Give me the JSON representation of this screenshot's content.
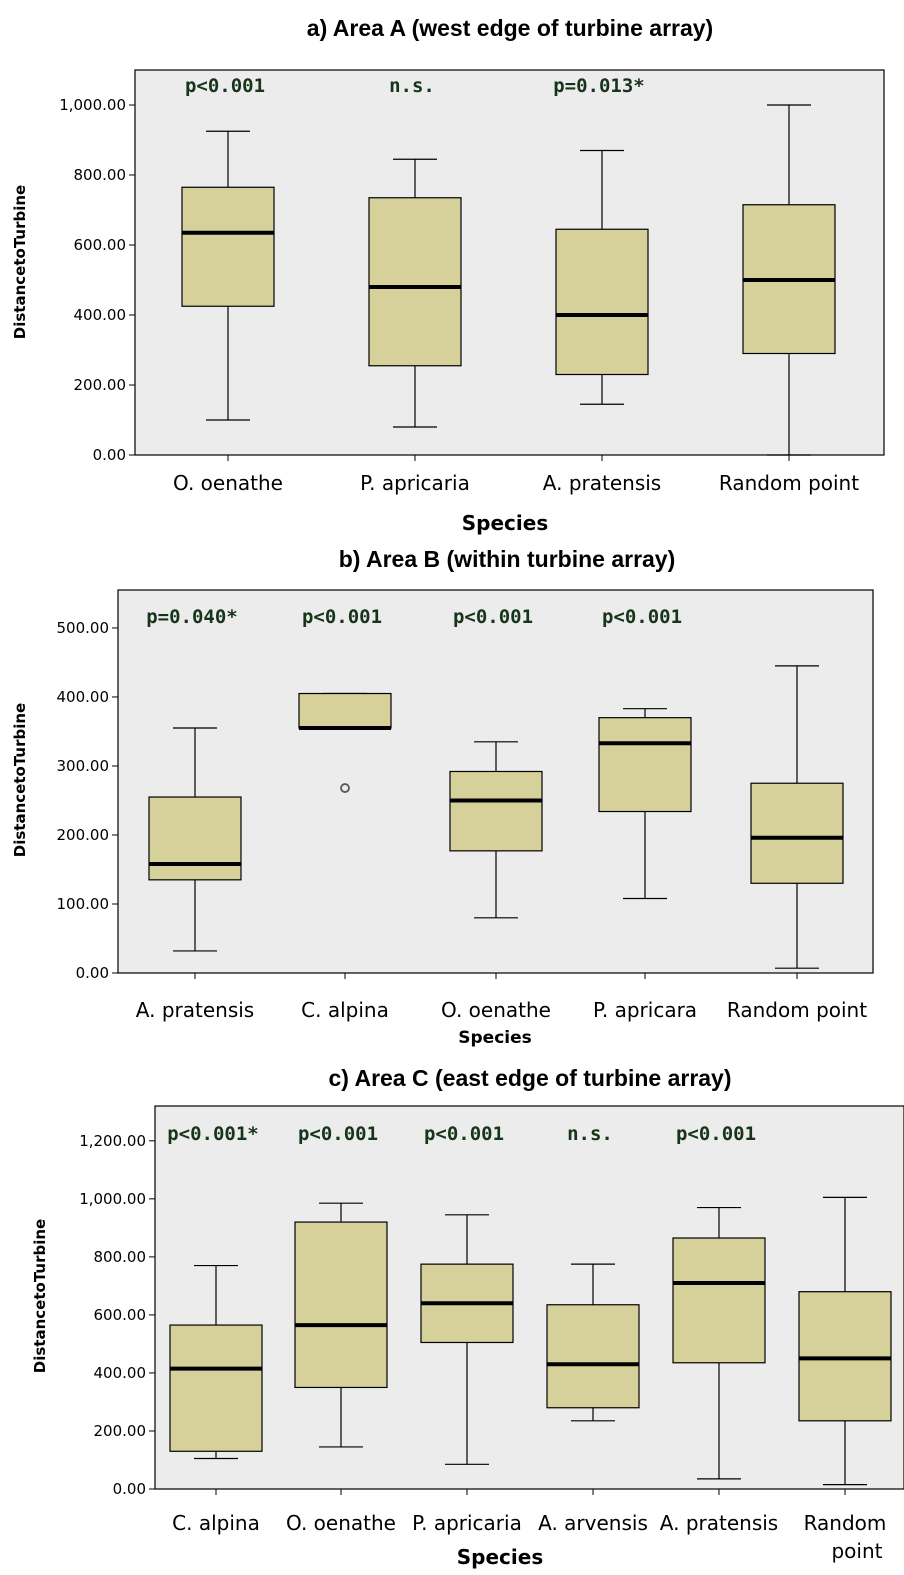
{
  "chart_data": [
    {
      "type": "box",
      "title": "a)   Area A (west edge of turbine array)",
      "xlabel": "Species",
      "ylabel": "DistancetoTurbine",
      "ylim": [
        0,
        1100
      ],
      "yticks": [
        0,
        200,
        400,
        600,
        800,
        1000
      ],
      "ytick_labels": [
        "0.00",
        "200.00",
        "400.00",
        "600.00",
        "800.00",
        "1,000.00"
      ],
      "categories": [
        [
          "O. oenathe"
        ],
        [
          "P. apricaria"
        ],
        [
          "A. pratensis"
        ],
        [
          "Random point"
        ]
      ],
      "boxes": [
        {
          "min": 100,
          "q1": 425,
          "median": 635,
          "q3": 765,
          "max": 925
        },
        {
          "min": 80,
          "q1": 255,
          "median": 480,
          "q3": 735,
          "max": 845
        },
        {
          "min": 145,
          "q1": 230,
          "median": 400,
          "q3": 645,
          "max": 870
        },
        {
          "min": 0,
          "q1": 290,
          "median": 500,
          "q3": 715,
          "max": 1000
        }
      ],
      "annotations": [
        "p<0.001",
        "n.s.",
        "p=0.013*",
        ""
      ],
      "outliers": [],
      "colors": {
        "box": "#d6d19b",
        "background": "#ececec",
        "annotation": "#17351a"
      }
    },
    {
      "type": "box",
      "title": "b)   Area B (within turbine array)",
      "xlabel": "Species",
      "ylabel": "DistancetoTurbine",
      "ylim": [
        0,
        555
      ],
      "yticks": [
        0,
        100,
        200,
        300,
        400,
        500
      ],
      "ytick_labels": [
        "0.00",
        "100.00",
        "200.00",
        "300.00",
        "400.00",
        "500.00"
      ],
      "categories": [
        [
          "A. pratensis"
        ],
        [
          "C. alpina"
        ],
        [
          "O. oenathe"
        ],
        [
          "P. apricara"
        ],
        [
          "Random point"
        ]
      ],
      "boxes": [
        {
          "min": 32,
          "q1": 135,
          "median": 158,
          "q3": 255,
          "max": 355
        },
        {
          "min": 355,
          "q1": 355,
          "median": 355,
          "q3": 405,
          "max": 405
        },
        {
          "min": 80,
          "q1": 177,
          "median": 250,
          "q3": 292,
          "max": 335
        },
        {
          "min": 108,
          "q1": 234,
          "median": 333,
          "q3": 370,
          "max": 383
        },
        {
          "min": 7,
          "q1": 130,
          "median": 196,
          "q3": 275,
          "max": 445
        }
      ],
      "annotations": [
        "p=0.040*",
        "p<0.001",
        "p<0.001",
        "p<0.001",
        ""
      ],
      "outliers": [
        {
          "category": 1,
          "value": 268
        }
      ],
      "colors": {
        "box": "#d6d19b",
        "background": "#ececec",
        "annotation": "#17351a"
      }
    },
    {
      "type": "box",
      "title": "c)   Area C (east edge of turbine array)",
      "xlabel": "Species",
      "ylabel": "DistancetoTurbine",
      "ylim": [
        0,
        1320
      ],
      "yticks": [
        0,
        200,
        400,
        600,
        800,
        1000,
        1200
      ],
      "ytick_labels": [
        "0.00",
        "200.00",
        "400.00",
        "600.00",
        "800.00",
        "1,000.00",
        "1,200.00"
      ],
      "categories": [
        [
          "C. alpina"
        ],
        [
          "O. oenathe"
        ],
        [
          "P. apricaria"
        ],
        [
          "A. arvensis"
        ],
        [
          "A. pratensis"
        ],
        [
          "Random",
          "point"
        ]
      ],
      "boxes": [
        {
          "min": 105,
          "q1": 130,
          "median": 415,
          "q3": 565,
          "max": 770
        },
        {
          "min": 145,
          "q1": 350,
          "median": 565,
          "q3": 920,
          "max": 985
        },
        {
          "min": 85,
          "q1": 505,
          "median": 640,
          "q3": 775,
          "max": 945
        },
        {
          "min": 235,
          "q1": 280,
          "median": 430,
          "q3": 635,
          "max": 775
        },
        {
          "min": 35,
          "q1": 435,
          "median": 710,
          "q3": 865,
          "max": 970
        },
        {
          "min": 15,
          "q1": 235,
          "median": 450,
          "q3": 680,
          "max": 1005
        }
      ],
      "annotations": [
        "p<0.001*",
        "p<0.001",
        "p<0.001",
        "n.s.",
        "p<0.001",
        ""
      ],
      "outliers": [],
      "colors": {
        "box": "#d6d19b",
        "background": "#ececec",
        "annotation": "#17351a"
      }
    }
  ]
}
